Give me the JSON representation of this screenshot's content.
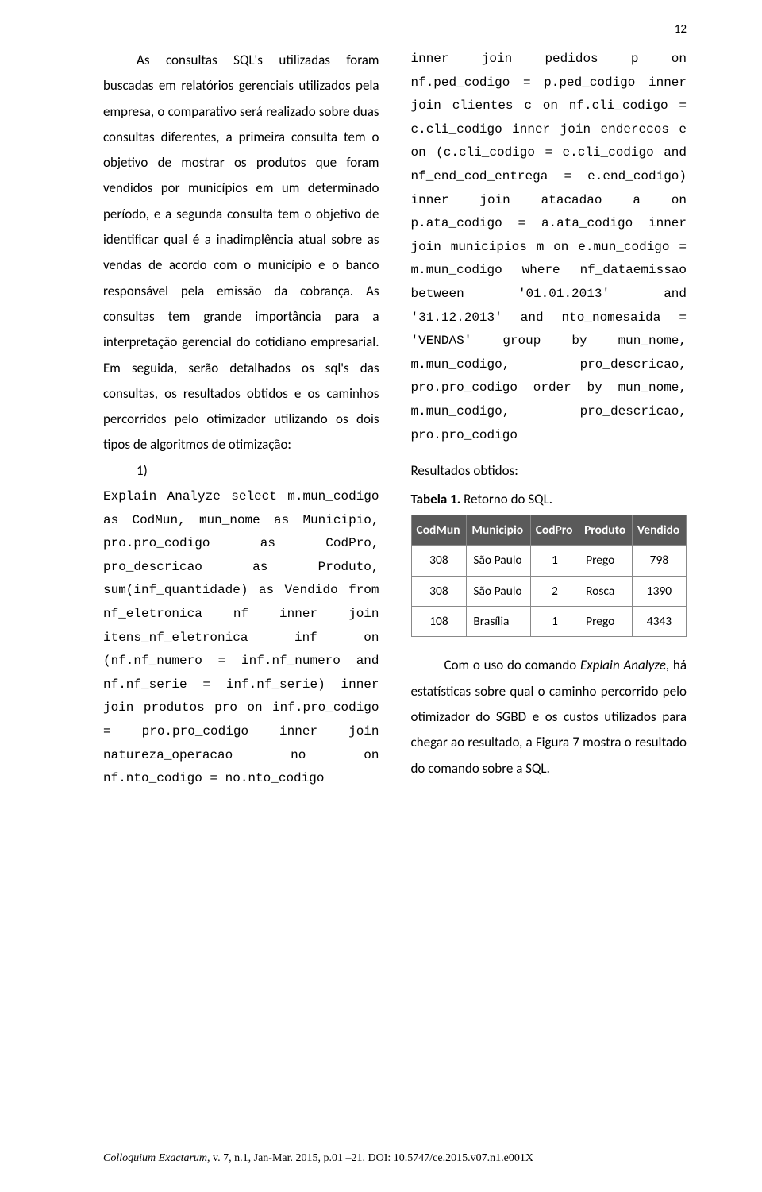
{
  "page_number": "12",
  "left_column": {
    "paragraph": "As consultas SQL's utilizadas foram buscadas em relatórios gerenciais utilizados pela empresa, o comparativo será realizado sobre duas consultas diferentes, a primeira consulta tem o objetivo de mostrar os produtos que foram vendidos por municípios em um determinado período, e a segunda consulta tem o objetivo de identificar qual é a inadimplência atual sobre as vendas de acordo com o município e o banco responsável pela emissão da cobrança. As consultas tem grande importância para a interpretação gerencial do cotidiano empresarial. Em seguida, serão detalhados os sql's das consultas, os resultados obtidos e os caminhos percorridos pelo otimizador utilizando os dois tipos de algoritmos de otimização:",
    "list_num": "1)",
    "code": "Explain Analyze\nselect m.mun_codigo as CodMun, mun_nome as Municipio, pro.pro_codigo as CodPro, pro_descricao as Produto, sum(inf_quantidade) as Vendido\nfrom nf_eletronica nf inner join itens_nf_eletronica inf on (nf.nf_numero = inf.nf_numero and nf.nf_serie = inf.nf_serie)\ninner join produtos pro on inf.pro_codigo = pro.pro_codigo\ninner join natureza_operacao no on nf.nto_codigo = no.nto_codigo"
  },
  "right_column": {
    "code": "inner join pedidos p on nf.ped_codigo = p.ped_codigo\ninner join clientes c on nf.cli_codigo = c.cli_codigo\ninner join enderecos e on (c.cli_codigo = e.cli_codigo and nf_end_cod_entrega = e.end_codigo)\ninner join atacadao a on p.ata_codigo = a.ata_codigo\ninner join municipios m on e.mun_codigo = m.mun_codigo\nwhere nf_dataemissao between '01.01.2013' and '31.12.2013'\nand nto_nomesaida = 'VENDAS'\ngroup by mun_nome, m.mun_codigo, pro_descricao, pro.pro_codigo\norder by mun_nome, m.mun_codigo, pro_descricao, pro.pro_codigo",
    "results_label": "Resultados obtidos:",
    "table_caption_bold": "Tabela 1.",
    "table_caption_rest": " Retorno do SQL.",
    "table": {
      "columns": [
        "CodMun",
        "Municipio",
        "CodPro",
        "Produto",
        "Vendido"
      ],
      "rows": [
        [
          "308",
          "São Paulo",
          "1",
          "Prego",
          "798"
        ],
        [
          "308",
          "São Paulo",
          "2",
          "Rosca",
          "1390"
        ],
        [
          "108",
          "Brasília",
          "1",
          "Prego",
          "4343"
        ]
      ],
      "header_bg": "#5a5a5a",
      "header_fg": "#ffffff",
      "border_color": "#888888"
    },
    "paragraph_after_pre": "Com o uso do comando ",
    "paragraph_after_italic": "Explain Analyze",
    "paragraph_after_post": ", há estatísticas sobre qual o caminho percorrido pelo otimizador do SGBD e os custos utilizados para chegar ao resultado, a Figura 7 mostra o resultado do comando sobre a SQL."
  },
  "footer": {
    "journal_italic": "Colloquium Exactarum",
    "rest": ", v. 7, n.1, Jan-Mar. 2015, p.01 –21. DOI: 10.5747/ce.2015.v07.n1.e001X"
  }
}
